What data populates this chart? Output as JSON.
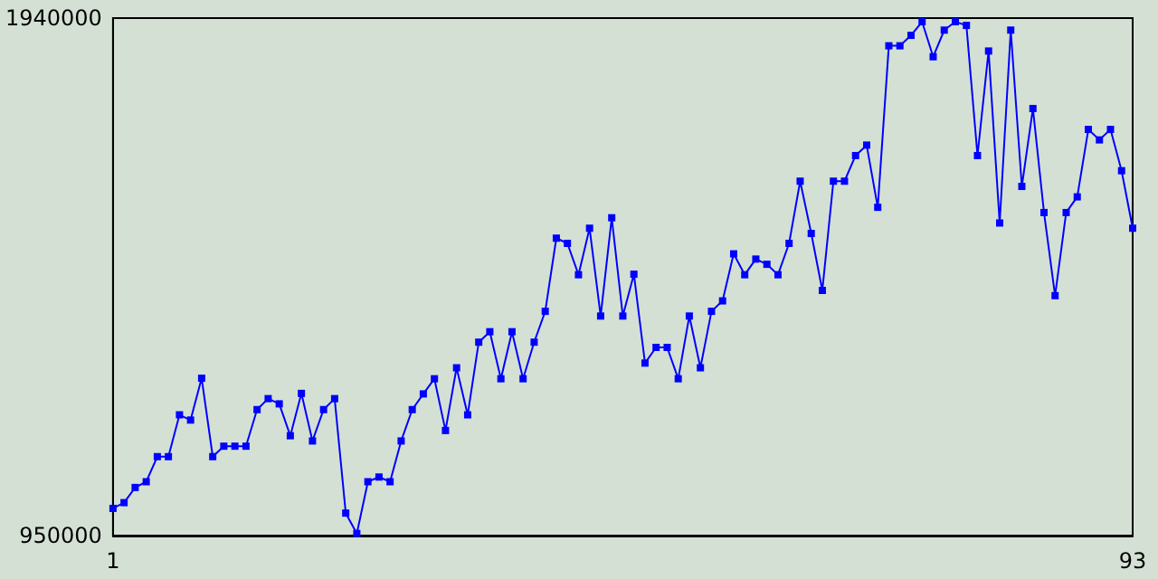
{
  "chart_data": {
    "type": "line",
    "x": [
      1,
      2,
      3,
      4,
      5,
      6,
      7,
      8,
      9,
      10,
      11,
      12,
      13,
      14,
      15,
      16,
      17,
      18,
      19,
      20,
      21,
      22,
      23,
      24,
      25,
      26,
      27,
      28,
      29,
      30,
      31,
      32,
      33,
      34,
      35,
      36,
      37,
      38,
      39,
      40,
      41,
      42,
      43,
      44,
      45,
      46,
      47,
      48,
      49,
      50,
      51,
      52,
      53,
      54,
      55,
      56,
      57,
      58,
      59,
      60,
      61,
      62,
      63,
      64,
      65,
      66,
      67,
      68,
      69,
      70,
      71,
      72,
      73,
      74,
      75,
      76,
      77,
      78,
      79,
      80,
      81,
      82,
      83,
      84,
      85,
      86,
      87,
      88,
      89,
      90,
      91,
      92,
      93
    ],
    "series": [
      {
        "color": "#0000ff",
        "values": [
          1002000,
          1013000,
          1042000,
          1053000,
          1101000,
          1101000,
          1181000,
          1171000,
          1251000,
          1101000,
          1121000,
          1121000,
          1121000,
          1191000,
          1212000,
          1202000,
          1141000,
          1222000,
          1131000,
          1191000,
          1212000,
          993000,
          954000,
          1053000,
          1062000,
          1053000,
          1131000,
          1191000,
          1221000,
          1250000,
          1151000,
          1271000,
          1181000,
          1320000,
          1340000,
          1250000,
          1340000,
          1250000,
          1320000,
          1379000,
          1519000,
          1509000,
          1449000,
          1538000,
          1370000,
          1558000,
          1370000,
          1450000,
          1280000,
          1310000,
          1310000,
          1250000,
          1370000,
          1271000,
          1379000,
          1399000,
          1489000,
          1449000,
          1479000,
          1469000,
          1449000,
          1509000,
          1628000,
          1528000,
          1419000,
          1628000,
          1628000,
          1677000,
          1697000,
          1578000,
          1887000,
          1887000,
          1907000,
          1933000,
          1866000,
          1917000,
          1933000,
          1926000,
          1677000,
          1877000,
          1548000,
          1917000,
          1618000,
          1767000,
          1568000,
          1409000,
          1568000,
          1598000,
          1727000,
          1707000,
          1727000,
          1648000,
          1538000
        ]
      }
    ],
    "xlim": [
      1,
      93
    ],
    "xticks": [
      1,
      93
    ],
    "ylim": [
      950000,
      1940000
    ],
    "yticks": [
      950000,
      1940000
    ],
    "grid": false,
    "marker": "square",
    "line_style": "solid"
  }
}
